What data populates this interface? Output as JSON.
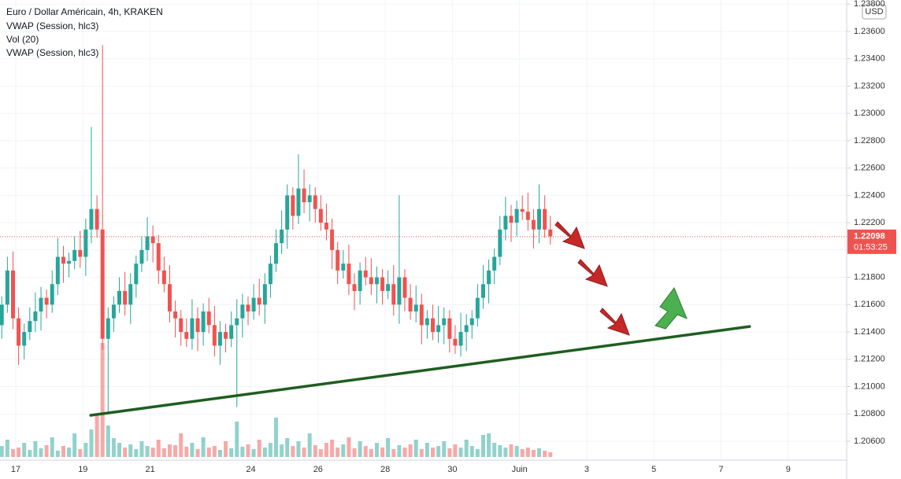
{
  "chart_data": {
    "type": "candlestick",
    "title": "Euro / Dollar Américain, 4h, KRAKEN",
    "indicators": [
      "VWAP (Session, hlc3)",
      "Vol (20)",
      "VWAP (Session, hlc3)"
    ],
    "currency": "USD",
    "up_color": "#26a69a",
    "down_color": "#ef5350",
    "grid": true,
    "x": [
      16.583,
      16.75,
      16.917,
      17.083,
      17.25,
      17.417,
      17.583,
      17.75,
      17.917,
      18.083,
      18.25,
      18.417,
      18.583,
      18.75,
      18.917,
      19.083,
      19.25,
      19.417,
      19.583,
      19.75,
      19.917,
      20.083,
      20.25,
      20.417,
      20.583,
      20.75,
      20.917,
      21.083,
      21.25,
      21.417,
      21.583,
      21.75,
      21.917,
      22.083,
      22.25,
      22.417,
      22.583,
      22.75,
      22.917,
      23.083,
      23.25,
      23.417,
      23.583,
      23.75,
      23.917,
      24.083,
      24.25,
      24.417,
      24.583,
      24.75,
      24.917,
      25.083,
      25.25,
      25.417,
      25.583,
      25.75,
      25.917,
      26.083,
      26.25,
      26.417,
      26.583,
      26.75,
      26.917,
      27.083,
      27.25,
      27.417,
      27.583,
      27.75,
      27.917,
      28.083,
      28.25,
      28.417,
      28.583,
      28.75,
      28.917,
      29.083,
      29.25,
      29.417,
      29.583,
      29.75,
      29.917,
      30.083,
      30.25,
      30.417,
      30.583,
      30.75,
      30.917,
      31.083,
      31.25,
      31.417,
      31.583,
      31.75,
      31.917,
      32.083,
      32.25,
      32.417,
      32.583,
      32.75,
      32.917
    ],
    "open": [
      1.2145,
      1.216,
      1.2185,
      1.215,
      1.213,
      1.214,
      1.2148,
      1.2155,
      1.2165,
      1.216,
      1.2175,
      1.2195,
      1.219,
      1.2192,
      1.22,
      1.2195,
      1.2215,
      1.223,
      1.2215,
      1.2135,
      1.215,
      1.216,
      1.217,
      1.216,
      1.2175,
      1.219,
      1.22,
      1.221,
      1.2205,
      1.2185,
      1.2175,
      1.2155,
      1.215,
      1.214,
      1.2135,
      1.215,
      1.214,
      1.2155,
      1.2145,
      1.213,
      1.214,
      1.2135,
      1.2145,
      1.215,
      1.216,
      1.2155,
      1.2165,
      1.216,
      1.2175,
      1.219,
      1.2205,
      1.2215,
      1.224,
      1.2225,
      1.2245,
      1.2235,
      1.224,
      1.223,
      1.222,
      1.2215,
      1.22,
      1.2185,
      1.219,
      1.2175,
      1.217,
      1.2185,
      1.218,
      1.2175,
      1.218,
      1.217,
      1.2175,
      1.216,
      1.218,
      1.2165,
      1.2155,
      1.216,
      1.2145,
      1.215,
      1.214,
      1.2145,
      1.215,
      1.2135,
      1.213,
      1.214,
      1.2145,
      1.215,
      1.2165,
      1.2175,
      1.2185,
      1.2195,
      1.2215,
      1.2225,
      1.222,
      1.223,
      1.2228,
      1.2222,
      1.2215,
      1.223,
      1.2215
    ],
    "high": [
      1.2166,
      1.2195,
      1.2199,
      1.2158,
      1.2146,
      1.2158,
      1.2169,
      1.2173,
      1.2171,
      1.2185,
      1.2209,
      1.2203,
      1.2198,
      1.221,
      1.2214,
      1.2223,
      1.229,
      1.224,
      1.235,
      1.2158,
      1.2166,
      1.218,
      1.2184,
      1.2183,
      1.2196,
      1.221,
      1.2224,
      1.2218,
      1.2211,
      1.2195,
      1.2189,
      1.2163,
      1.2156,
      1.215,
      1.2164,
      1.2158,
      1.2161,
      1.2165,
      1.2159,
      1.2148,
      1.2146,
      1.2155,
      1.2164,
      1.2168,
      1.2166,
      1.2175,
      1.2179,
      1.2183,
      1.2196,
      1.2215,
      1.2229,
      1.2248,
      1.2246,
      1.227,
      1.2259,
      1.2248,
      1.2246,
      1.224,
      1.2234,
      1.2223,
      1.2206,
      1.22,
      1.2204,
      1.2183,
      1.2191,
      1.2195,
      1.2194,
      1.2188,
      1.2186,
      1.2185,
      1.2189,
      1.224,
      1.2186,
      1.2175,
      1.2174,
      1.2168,
      1.2156,
      1.216,
      1.2159,
      1.2158,
      1.2156,
      1.2145,
      1.2154,
      1.2153,
      1.2156,
      1.2175,
      1.2189,
      1.2193,
      1.2201,
      1.2225,
      1.2239,
      1.2233,
      1.2236,
      1.224,
      1.2242,
      1.223,
      1.2248,
      1.224,
      1.2225
    ],
    "low": [
      1.2135,
      1.2154,
      1.2142,
      1.2116,
      1.212,
      1.2134,
      1.214,
      1.2141,
      1.215,
      1.2154,
      1.2167,
      1.2176,
      1.218,
      1.2186,
      1.2187,
      1.2181,
      1.2205,
      1.2209,
      1.2127,
      1.208,
      1.214,
      1.2154,
      1.2152,
      1.2146,
      1.2165,
      1.2184,
      1.2192,
      1.2191,
      1.2175,
      1.2169,
      1.2147,
      1.2136,
      1.213,
      1.2129,
      1.2127,
      1.2126,
      1.213,
      1.2139,
      1.2122,
      1.2116,
      1.2125,
      1.2129,
      1.2085,
      1.2136,
      1.2145,
      1.2149,
      1.2152,
      1.2146,
      1.2165,
      1.2184,
      1.2197,
      1.2201,
      1.2215,
      1.2219,
      1.2227,
      1.2221,
      1.222,
      1.2214,
      1.2207,
      1.2186,
      1.2175,
      1.2179,
      1.2167,
      1.2156,
      1.216,
      1.2174,
      1.2167,
      1.2161,
      1.216,
      1.2164,
      1.2152,
      1.2146,
      1.2155,
      1.2149,
      1.2147,
      1.2131,
      1.2135,
      1.2134,
      1.2132,
      1.2131,
      1.2125,
      1.2124,
      1.2122,
      1.2126,
      1.2135,
      1.2144,
      1.2157,
      1.2161,
      1.2175,
      1.2189,
      1.2207,
      1.2206,
      1.221,
      1.2222,
      1.2214,
      1.2201,
      1.2205,
      1.2209,
      1.2204
    ],
    "close": [
      1.216,
      1.2185,
      1.215,
      1.213,
      1.214,
      1.2148,
      1.2155,
      1.2165,
      1.216,
      1.2175,
      1.2195,
      1.219,
      1.2192,
      1.22,
      1.2195,
      1.2215,
      1.223,
      1.2215,
      1.2135,
      1.215,
      1.216,
      1.217,
      1.216,
      1.2175,
      1.219,
      1.22,
      1.221,
      1.2205,
      1.2185,
      1.2175,
      1.2155,
      1.215,
      1.214,
      1.2135,
      1.215,
      1.214,
      1.2155,
      1.2145,
      1.213,
      1.214,
      1.2135,
      1.2145,
      1.215,
      1.216,
      1.2155,
      1.2165,
      1.216,
      1.2175,
      1.219,
      1.2205,
      1.2215,
      1.224,
      1.2225,
      1.2245,
      1.2235,
      1.224,
      1.223,
      1.222,
      1.2215,
      1.22,
      1.2185,
      1.219,
      1.2175,
      1.217,
      1.2185,
      1.218,
      1.2175,
      1.218,
      1.217,
      1.2175,
      1.216,
      1.218,
      1.2165,
      1.2155,
      1.216,
      1.2145,
      1.215,
      1.214,
      1.2145,
      1.215,
      1.2135,
      1.213,
      1.214,
      1.2145,
      1.215,
      1.2165,
      1.2175,
      1.2185,
      1.2195,
      1.2215,
      1.2225,
      1.222,
      1.223,
      1.2228,
      1.2222,
      1.2215,
      1.223,
      1.2215,
      1.221
    ],
    "volume": [
      14,
      22,
      10,
      12,
      18,
      9,
      20,
      11,
      15,
      25,
      8,
      14,
      12,
      30,
      10,
      18,
      35,
      55,
      145,
      40,
      24,
      18,
      12,
      16,
      10,
      20,
      14,
      12,
      22,
      11,
      16,
      15,
      30,
      13,
      18,
      10,
      25,
      12,
      14,
      9,
      20,
      11,
      45,
      13,
      16,
      10,
      22,
      12,
      18,
      50,
      16,
      24,
      14,
      20,
      12,
      30,
      15,
      10,
      18,
      22,
      12,
      16,
      25,
      11,
      20,
      14,
      10,
      18,
      12,
      24,
      10,
      15,
      12,
      16,
      22,
      10,
      18,
      12,
      14,
      20,
      11,
      16,
      12,
      22,
      14,
      10,
      28,
      30,
      18,
      15,
      12,
      16,
      14,
      10,
      12,
      9,
      11,
      8,
      6
    ],
    "xlim": [
      16.53,
      41.74
    ],
    "xticks": [
      17,
      19,
      21,
      24,
      26,
      28,
      30,
      {
        "value": 32,
        "label": "Juin"
      },
      {
        "value": 34,
        "label": "3"
      },
      {
        "value": 36,
        "label": "5"
      },
      {
        "value": 38,
        "label": "7"
      },
      {
        "value": 40,
        "label": "9"
      }
    ],
    "ylim": [
      1.20462,
      1.2383
    ],
    "yticks": [
      {
        "value": 1.206,
        "label": "1.20600"
      },
      {
        "value": 1.208,
        "label": "1.20800"
      },
      {
        "value": 1.21,
        "label": "1.21000"
      },
      {
        "value": 1.212,
        "label": "1.21200"
      },
      {
        "value": 1.214,
        "label": "1.21400"
      },
      {
        "value": 1.216,
        "label": "1.21600"
      },
      {
        "value": 1.218,
        "label": "1.21800"
      },
      {
        "value": 1.22,
        "label": "1.22000"
      },
      {
        "value": 1.222,
        "label": "1.22200"
      },
      {
        "value": 1.224,
        "label": "1.22400"
      },
      {
        "value": 1.226,
        "label": "1.22600"
      },
      {
        "value": 1.228,
        "label": "1.22800"
      },
      {
        "value": 1.23,
        "label": "1.23000"
      },
      {
        "value": 1.232,
        "label": "1.23200"
      },
      {
        "value": 1.234,
        "label": "1.23400"
      },
      {
        "value": 1.236,
        "label": "1.23600"
      },
      {
        "value": 1.238,
        "label": "1.23800"
      }
    ],
    "last_price": {
      "value": 1.22098,
      "label": "1.22098"
    },
    "countdown": "01:53:25",
    "trendline": {
      "x": [
        19.23,
        38.85
      ],
      "y": [
        1.2079,
        1.2144
      ],
      "color": "#1e5e20"
    }
  }
}
